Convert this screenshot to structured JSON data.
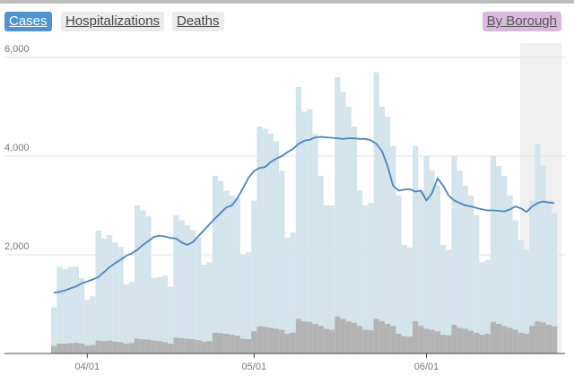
{
  "tabs": [
    "Cases",
    "Hospitalizations",
    "Deaths"
  ],
  "borough_button": "By Borough",
  "chart_data": {
    "type": "bar",
    "categories": [
      null,
      null,
      null,
      null,
      null,
      null,
      "04/01",
      null,
      null,
      null,
      null,
      null,
      null,
      null,
      null,
      null,
      null,
      null,
      null,
      null,
      null,
      null,
      null,
      null,
      null,
      null,
      null,
      null,
      null,
      null,
      null,
      null,
      null,
      null,
      null,
      null,
      "05/01",
      null,
      null,
      null,
      null,
      null,
      null,
      null,
      null,
      null,
      null,
      null,
      null,
      null,
      null,
      null,
      null,
      null,
      null,
      null,
      null,
      null,
      null,
      null,
      null,
      null,
      null,
      null,
      null,
      null,
      null,
      "06/01",
      null,
      null,
      null,
      null,
      null,
      null,
      null,
      null,
      null,
      null,
      null,
      null,
      null,
      null,
      null,
      null,
      null,
      null,
      null,
      null,
      null,
      null,
      null
    ],
    "ylim": [
      0,
      6000
    ],
    "yticks": [
      {
        "value": 2000,
        "label": "2,000"
      },
      {
        "value": 4000,
        "label": "4,000"
      },
      {
        "value": 6000,
        "label": "6,000"
      }
    ],
    "grid": true,
    "series": [
      {
        "type": "bar",
        "color": "#d3e4ec",
        "values": [
          930,
          1760,
          1710,
          1760,
          1760,
          1530,
          1090,
          1160,
          2490,
          2330,
          2400,
          2250,
          2160,
          1400,
          1450,
          3000,
          2900,
          2780,
          1530,
          1550,
          1580,
          1350,
          2800,
          2700,
          2600,
          2500,
          2350,
          1800,
          1850,
          3600,
          3500,
          3300,
          3200,
          3150,
          2000,
          2050,
          3100,
          4600,
          4550,
          4450,
          4300,
          3700,
          2350,
          2450,
          5400,
          4900,
          4950,
          4450,
          3600,
          3000,
          3000,
          5600,
          5300,
          5000,
          4600,
          3300,
          3000,
          3050,
          5700,
          5000,
          4800,
          4200,
          3200,
          2200,
          2150,
          4200,
          3300,
          4000,
          3700,
          3400,
          2200,
          2100,
          4000,
          3700,
          3400,
          3200,
          2800,
          1850,
          1900,
          4000,
          3800,
          3600,
          3200,
          2700,
          2300,
          2100,
          3100,
          4250,
          3800,
          3100,
          2850
        ]
      },
      {
        "type": "bar",
        "color": "#b3b3b3",
        "values": [
          150,
          200,
          200,
          210,
          220,
          200,
          160,
          170,
          260,
          250,
          260,
          240,
          230,
          200,
          210,
          300,
          290,
          280,
          260,
          250,
          230,
          200,
          320,
          310,
          300,
          290,
          270,
          240,
          250,
          420,
          410,
          400,
          380,
          360,
          300,
          290,
          450,
          550,
          540,
          520,
          500,
          480,
          400,
          420,
          700,
          650,
          640,
          600,
          560,
          500,
          480,
          750,
          700,
          650,
          620,
          560,
          480,
          470,
          700,
          650,
          600,
          560,
          400,
          350,
          340,
          650,
          560,
          500,
          480,
          450,
          380,
          370,
          580,
          520,
          500,
          460,
          420,
          380,
          400,
          640,
          600,
          560,
          520,
          480,
          420,
          400,
          560,
          650,
          630,
          580,
          550
        ]
      },
      {
        "type": "line",
        "color": "#4a84c2",
        "values": [
          1230,
          1250,
          1280,
          1320,
          1360,
          1420,
          1460,
          1500,
          1550,
          1650,
          1750,
          1830,
          1900,
          1980,
          2030,
          2100,
          2200,
          2280,
          2360,
          2390,
          2370,
          2340,
          2330,
          2250,
          2200,
          2260,
          2380,
          2500,
          2620,
          2740,
          2850,
          2960,
          3000,
          3150,
          3350,
          3560,
          3700,
          3760,
          3780,
          3880,
          3950,
          4000,
          4080,
          4150,
          4250,
          4310,
          4330,
          4380,
          4390,
          4380,
          4370,
          4360,
          4350,
          4360,
          4360,
          4350,
          4350,
          4320,
          4250,
          4100,
          3800,
          3400,
          3300,
          3320,
          3330,
          3280,
          3300,
          3100,
          3250,
          3550,
          3400,
          3200,
          3100,
          3050,
          3000,
          2980,
          2950,
          2920,
          2900,
          2900,
          2890,
          2880,
          2920,
          2980,
          2940,
          2870,
          2980,
          3050,
          3080,
          3060,
          3050
        ]
      }
    ]
  }
}
